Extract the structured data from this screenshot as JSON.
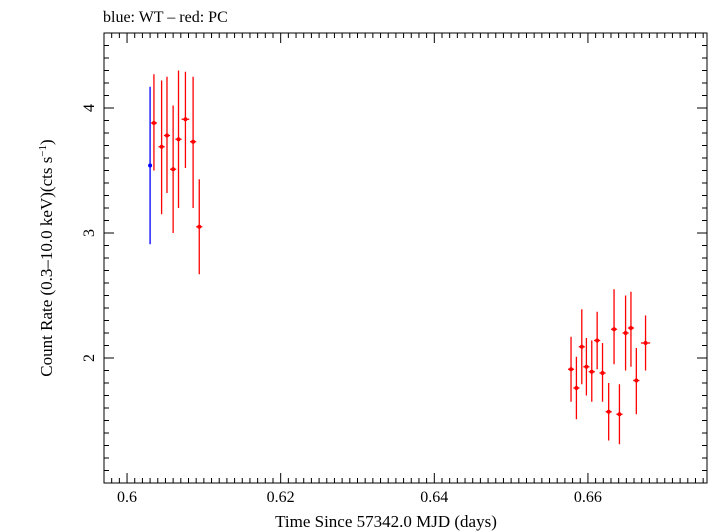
{
  "chart_data": {
    "type": "scatter",
    "title": "blue: WT – red: PC",
    "xlabel": "Time Since 57342.0 MJD (days)",
    "ylabel_main": "Count Rate (0.3–10.0 keV)(cts s",
    "ylabel_sup": "−1",
    "ylabel_close": ")",
    "xlim": [
      0.597,
      0.6755
    ],
    "ylim": [
      1.0,
      4.6
    ],
    "xticks": [
      0.6,
      0.62,
      0.64,
      0.66
    ],
    "xtick_labels": [
      "0.6",
      "0.62",
      "0.64",
      "0.66"
    ],
    "yticks": [
      2,
      3,
      4
    ],
    "ytick_labels": [
      "2",
      "3",
      "4"
    ],
    "grid": false,
    "series": [
      {
        "color": "#0000ff",
        "points": [
          {
            "x": 0.603,
            "y": 3.54,
            "xerr": 0.0001,
            "ylo": 2.91,
            "yhi": 4.17
          }
        ]
      },
      {
        "color": "#ff0000",
        "points": [
          {
            "x": 0.6035,
            "y": 3.88,
            "xerr": 0.0004,
            "ylo": 3.5,
            "yhi": 4.27
          },
          {
            "x": 0.6045,
            "y": 3.69,
            "xerr": 0.0004,
            "ylo": 3.15,
            "yhi": 4.22
          },
          {
            "x": 0.6052,
            "y": 3.78,
            "xerr": 0.0004,
            "ylo": 3.32,
            "yhi": 4.25
          },
          {
            "x": 0.606,
            "y": 3.51,
            "xerr": 0.0004,
            "ylo": 3.0,
            "yhi": 4.02
          },
          {
            "x": 0.6067,
            "y": 3.75,
            "xerr": 0.0004,
            "ylo": 3.2,
            "yhi": 4.3
          },
          {
            "x": 0.6076,
            "y": 3.91,
            "xerr": 0.0005,
            "ylo": 3.52,
            "yhi": 4.29
          },
          {
            "x": 0.6086,
            "y": 3.73,
            "xerr": 0.0004,
            "ylo": 3.2,
            "yhi": 4.25
          },
          {
            "x": 0.6094,
            "y": 3.05,
            "xerr": 0.0004,
            "ylo": 2.67,
            "yhi": 3.43
          },
          {
            "x": 0.6578,
            "y": 1.91,
            "xerr": 0.0004,
            "ylo": 1.65,
            "yhi": 2.17
          },
          {
            "x": 0.6585,
            "y": 1.76,
            "xerr": 0.0004,
            "ylo": 1.51,
            "yhi": 2.01
          },
          {
            "x": 0.6592,
            "y": 2.09,
            "xerr": 0.0004,
            "ylo": 1.79,
            "yhi": 2.39
          },
          {
            "x": 0.6598,
            "y": 1.93,
            "xerr": 0.0004,
            "ylo": 1.7,
            "yhi": 2.16
          },
          {
            "x": 0.6605,
            "y": 1.89,
            "xerr": 0.0004,
            "ylo": 1.65,
            "yhi": 2.14
          },
          {
            "x": 0.6612,
            "y": 2.14,
            "xerr": 0.0004,
            "ylo": 1.91,
            "yhi": 2.37
          },
          {
            "x": 0.6619,
            "y": 1.88,
            "xerr": 0.0004,
            "ylo": 1.65,
            "yhi": 2.12
          },
          {
            "x": 0.6627,
            "y": 1.57,
            "xerr": 0.0004,
            "ylo": 1.34,
            "yhi": 1.8
          },
          {
            "x": 0.6634,
            "y": 2.23,
            "xerr": 0.0004,
            "ylo": 1.95,
            "yhi": 2.55
          },
          {
            "x": 0.6641,
            "y": 1.55,
            "xerr": 0.0004,
            "ylo": 1.31,
            "yhi": 1.79
          },
          {
            "x": 0.6649,
            "y": 2.2,
            "xerr": 0.0004,
            "ylo": 1.9,
            "yhi": 2.5
          },
          {
            "x": 0.6656,
            "y": 2.24,
            "xerr": 0.0004,
            "ylo": 1.93,
            "yhi": 2.53
          },
          {
            "x": 0.6663,
            "y": 1.82,
            "xerr": 0.0004,
            "ylo": 1.55,
            "yhi": 2.08
          },
          {
            "x": 0.6675,
            "y": 2.12,
            "xerr": 0.0006,
            "ylo": 1.9,
            "yhi": 2.34
          }
        ]
      }
    ]
  }
}
